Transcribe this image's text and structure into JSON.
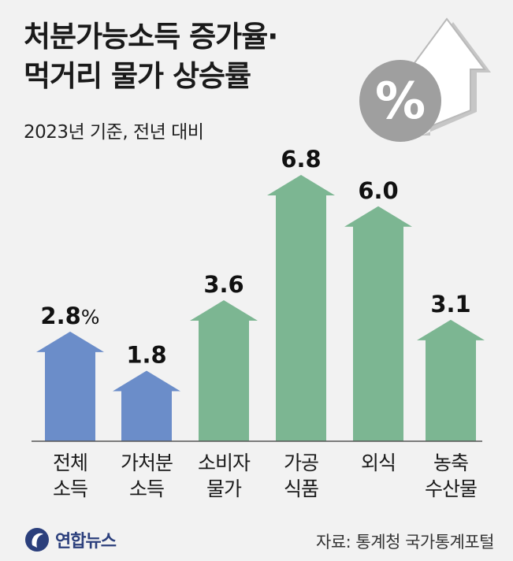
{
  "header": {
    "title_line1": "처분가능소득 증가율·",
    "title_line2": "먹거리 물가 상승률",
    "subtitle": "2023년 기준, 전년 대비"
  },
  "chart_data": {
    "type": "bar",
    "categories": [
      [
        "전체",
        "소득"
      ],
      [
        "가처분",
        "소득"
      ],
      [
        "소비자",
        "물가"
      ],
      [
        "가공",
        "식품"
      ],
      [
        "외식"
      ],
      [
        "농축",
        "수산물"
      ]
    ],
    "values": [
      2.8,
      1.8,
      3.6,
      6.8,
      6.0,
      3.1
    ],
    "value_labels": [
      "2.8",
      "1.8",
      "3.6",
      "6.8",
      "6.0",
      "3.1"
    ],
    "unit": "%",
    "ylim": [
      0,
      6.8
    ],
    "colors": [
      "#6b8dc9",
      "#6b8dc9",
      "#7cb692",
      "#7cb692",
      "#7cb692",
      "#7cb692"
    ],
    "grid": false,
    "legend": "none"
  },
  "decoration": {
    "icon": "percent-up-arrow-icon",
    "symbol": "%"
  },
  "footer": {
    "logo": "연합뉴스",
    "source": "자료: 통계청 국가통계포털"
  }
}
